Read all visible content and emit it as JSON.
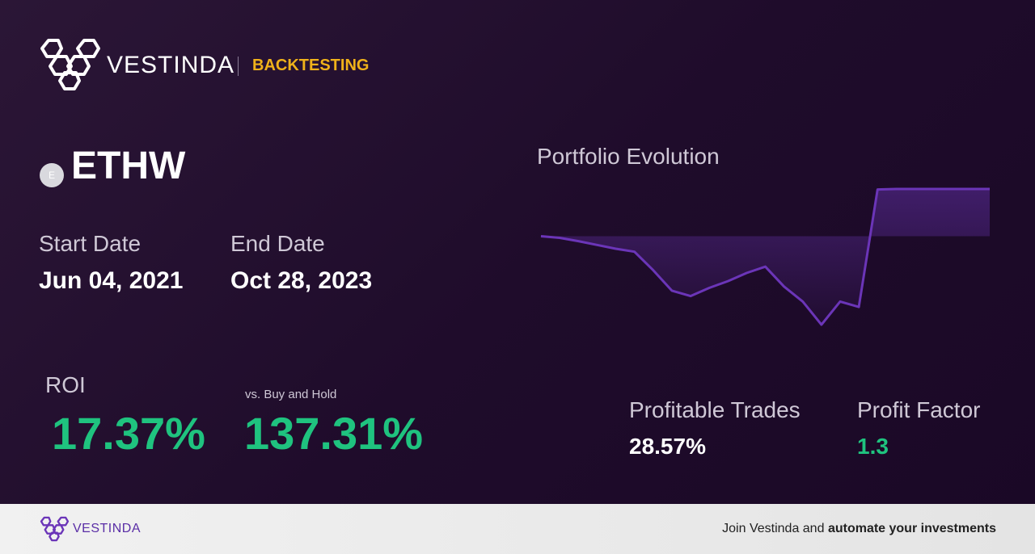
{
  "header": {
    "brand": "VESTINDA",
    "section": "BACKTESTING"
  },
  "asset": {
    "icon": "E",
    "symbol": "ETHW"
  },
  "dates": {
    "start_label": "Start Date",
    "start": "Jun 04, 2021",
    "end_label": "End Date",
    "end": "Oct 28, 2023"
  },
  "roi": {
    "label": "ROI",
    "value": "17.37%"
  },
  "buy_hold": {
    "label": "vs. Buy and Hold",
    "value": "137.31%"
  },
  "stats": {
    "profitable_label": "Profitable Trades",
    "profitable": "28.57%",
    "factor_label": "Profit Factor",
    "factor": "1.3"
  },
  "chart_data": {
    "type": "line",
    "title": "Portfolio Evolution",
    "values": [
      100,
      99.4,
      98.2,
      96.8,
      95.4,
      94.3,
      87.5,
      80,
      78,
      81,
      83.5,
      86.5,
      88.8,
      81.5,
      76,
      67.5,
      76,
      74,
      117.2,
      117.37,
      117.37,
      117.37,
      117.37,
      117.37,
      117.37
    ],
    "color": "#6b35b8"
  },
  "footer": {
    "brand": "VESTINDA",
    "text": "Join Vestinda and",
    "bold": "automate your investments"
  }
}
